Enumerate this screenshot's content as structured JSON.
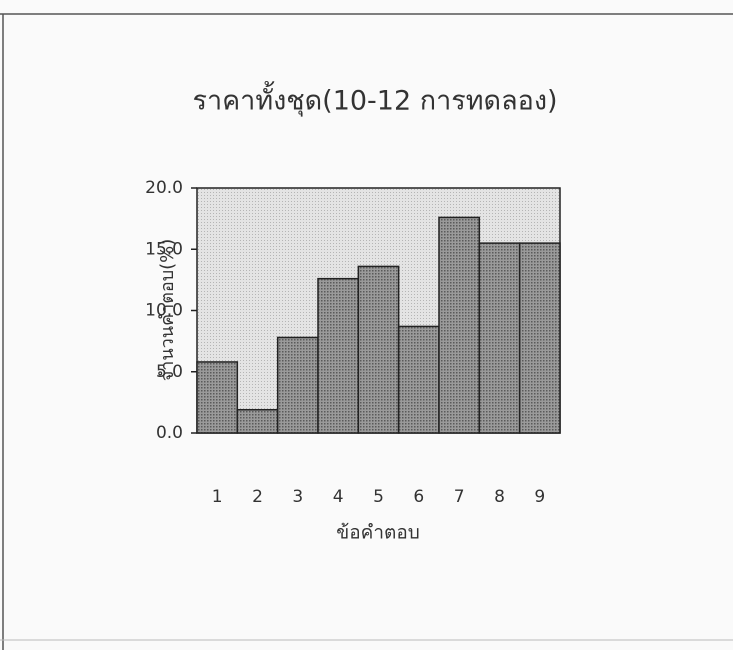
{
  "chart_data": {
    "type": "bar",
    "title": "ราคาทั้งชุด(10-12 การทดลอง)",
    "y_label": "จำนวนคำตอบ(%)",
    "x_label": "ข้อคำตอบ",
    "categories": [
      "1",
      "2",
      "3",
      "4",
      "5",
      "6",
      "7",
      "8",
      "9"
    ],
    "values": [
      5.8,
      1.9,
      7.8,
      12.6,
      13.6,
      8.7,
      17.6,
      15.5,
      15.5
    ],
    "color": "#8a8a8a",
    "ylim": [
      0,
      20
    ],
    "yticks": [
      {
        "value": 0,
        "label": "0.0"
      },
      {
        "value": 5,
        "label": "5.0"
      },
      {
        "value": 10,
        "label": "10.0"
      },
      {
        "value": 15,
        "label": "15.0"
      },
      {
        "value": 20,
        "label": "20.0"
      }
    ]
  }
}
